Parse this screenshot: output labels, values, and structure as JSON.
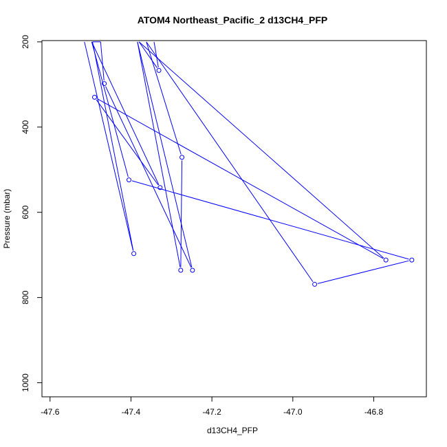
{
  "chart_data": {
    "type": "line",
    "title": "ATOM4 Northeast_Pacific_2 d13CH4_PFP",
    "xlabel": "d13CH4_PFP",
    "ylabel": "Pressure (mbar)",
    "xlim": [
      -47.62,
      -46.67
    ],
    "ylim": [
      1033,
      197
    ],
    "y_reversed": true,
    "x_ticks": [
      {
        "value": -47.6,
        "label": "-47.6"
      },
      {
        "value": -47.4,
        "label": "-47.4"
      },
      {
        "value": -47.2,
        "label": "-47.2"
      },
      {
        "value": -47.0,
        "label": "-47.0"
      },
      {
        "value": -46.8,
        "label": "-46.8"
      }
    ],
    "y_ticks": [
      {
        "value": 200,
        "label": "200"
      },
      {
        "value": 400,
        "label": "400"
      },
      {
        "value": 600,
        "label": "600"
      },
      {
        "value": 800,
        "label": "800"
      },
      {
        "value": 1000,
        "label": "1000"
      }
    ],
    "grid": false,
    "series": [
      {
        "color": "#0000ff",
        "marker": "open-circle",
        "points": [
          {
            "x": -47.515,
            "y": 200,
            "marker": false
          },
          {
            "x": -47.393,
            "y": 697,
            "marker": true
          },
          {
            "x": -47.495,
            "y": 200,
            "marker": false
          },
          {
            "x": -47.475,
            "y": 200,
            "marker": false
          },
          {
            "x": -47.466,
            "y": 298,
            "marker": true
          },
          {
            "x": -47.248,
            "y": 736,
            "marker": true
          },
          {
            "x": -47.384,
            "y": 200,
            "marker": false
          },
          {
            "x": -47.277,
            "y": 736,
            "marker": true
          },
          {
            "x": -47.274,
            "y": 471,
            "marker": true
          },
          {
            "x": -47.362,
            "y": 200,
            "marker": false
          },
          {
            "x": -46.946,
            "y": 769,
            "marker": true
          },
          {
            "x": -46.706,
            "y": 712,
            "marker": true
          },
          {
            "x": -47.405,
            "y": 524,
            "marker": true
          },
          {
            "x": -47.497,
            "y": 200,
            "marker": false
          },
          {
            "x": -47.328,
            "y": 542,
            "marker": true
          },
          {
            "x": -47.49,
            "y": 330,
            "marker": true
          },
          {
            "x": -46.77,
            "y": 712,
            "marker": true
          },
          {
            "x": -47.38,
            "y": 200,
            "marker": false
          },
          {
            "x": -47.331,
            "y": 267,
            "marker": true
          },
          {
            "x": -47.343,
            "y": 200,
            "marker": false
          }
        ]
      }
    ]
  }
}
